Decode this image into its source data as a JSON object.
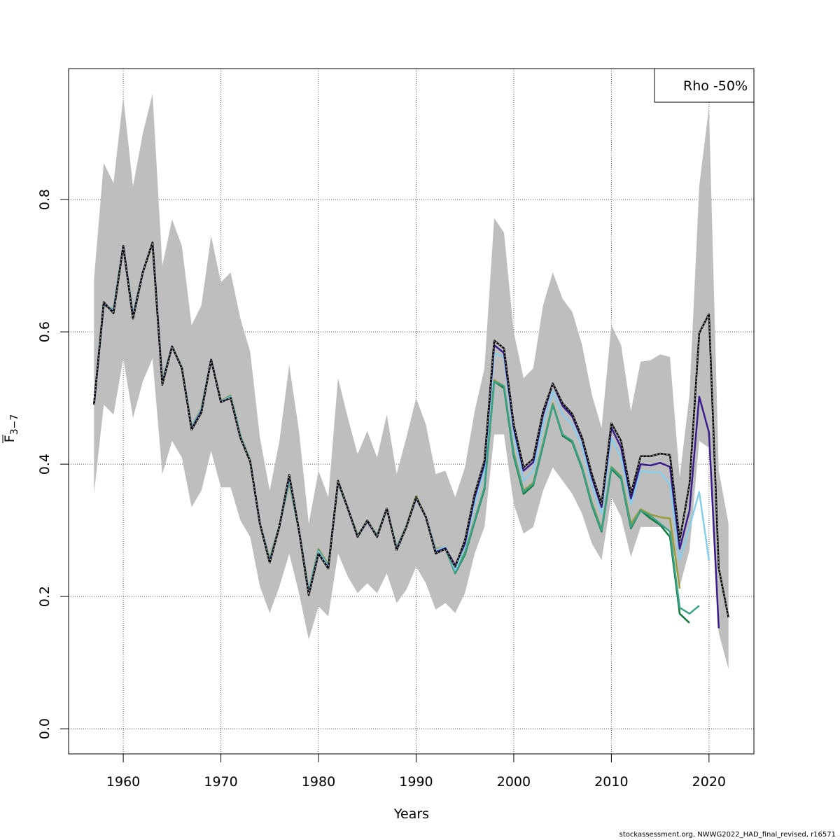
{
  "chart_data": {
    "type": "line",
    "title": "",
    "xlabel": "Years",
    "ylabel_main": "F",
    "ylabel_sub": "3−7",
    "xlim": [
      1954.4,
      2024.6
    ],
    "ylim": [
      -0.038,
      0.998
    ],
    "x_ticks": [
      1960,
      1970,
      1980,
      1990,
      2000,
      2010,
      2020
    ],
    "x_tick_labels": [
      "1960",
      "1970",
      "1980",
      "1990",
      "2000",
      "2010",
      "2020"
    ],
    "y_ticks": [
      0.0,
      0.2,
      0.4,
      0.6,
      0.8
    ],
    "y_tick_labels": [
      "0.0",
      "0.2",
      "0.4",
      "0.6",
      "0.8"
    ],
    "grid": true,
    "legend": {
      "position": "top-right",
      "label": "Rho -50%"
    },
    "band": {
      "color": "#bebebe",
      "x": [
        1957,
        1958,
        1959,
        1960,
        1961,
        1962,
        1963,
        1964,
        1965,
        1966,
        1967,
        1968,
        1969,
        1970,
        1971,
        1972,
        1973,
        1974,
        1975,
        1976,
        1977,
        1978,
        1979,
        1980,
        1981,
        1982,
        1983,
        1984,
        1985,
        1986,
        1987,
        1988,
        1989,
        1990,
        1991,
        1992,
        1993,
        1994,
        1995,
        1996,
        1997,
        1998,
        1999,
        2000,
        2001,
        2002,
        2003,
        2004,
        2005,
        2006,
        2007,
        2008,
        2009,
        2010,
        2011,
        2012,
        2013,
        2014,
        2015,
        2016,
        2017,
        2018,
        2019,
        2020,
        2021,
        2022
      ],
      "upper": [
        0.68,
        0.855,
        0.825,
        0.955,
        0.82,
        0.9,
        0.96,
        0.7,
        0.77,
        0.73,
        0.61,
        0.64,
        0.745,
        0.675,
        0.69,
        0.62,
        0.57,
        0.44,
        0.36,
        0.435,
        0.55,
        0.45,
        0.31,
        0.39,
        0.35,
        0.53,
        0.47,
        0.415,
        0.45,
        0.41,
        0.475,
        0.385,
        0.44,
        0.5,
        0.46,
        0.385,
        0.39,
        0.35,
        0.395,
        0.48,
        0.545,
        0.772,
        0.75,
        0.6,
        0.53,
        0.545,
        0.64,
        0.69,
        0.65,
        0.63,
        0.58,
        0.505,
        0.455,
        0.61,
        0.58,
        0.48,
        0.555,
        0.557,
        0.566,
        0.562,
        0.38,
        0.505,
        0.82,
        0.94,
        0.39,
        0.31
      ],
      "lower": [
        0.355,
        0.49,
        0.475,
        0.56,
        0.47,
        0.525,
        0.56,
        0.385,
        0.435,
        0.41,
        0.335,
        0.36,
        0.42,
        0.365,
        0.365,
        0.315,
        0.29,
        0.215,
        0.175,
        0.215,
        0.265,
        0.205,
        0.135,
        0.185,
        0.17,
        0.265,
        0.23,
        0.205,
        0.22,
        0.205,
        0.235,
        0.19,
        0.21,
        0.245,
        0.22,
        0.18,
        0.19,
        0.175,
        0.205,
        0.265,
        0.305,
        0.445,
        0.445,
        0.34,
        0.295,
        0.305,
        0.36,
        0.395,
        0.375,
        0.355,
        0.325,
        0.28,
        0.255,
        0.35,
        0.32,
        0.26,
        0.305,
        0.305,
        0.305,
        0.3,
        0.215,
        0.27,
        0.435,
        0.425,
        0.145,
        0.09
      ]
    },
    "series": [
      {
        "name": "peel-0",
        "color": "#000000",
        "dashed_overlay": true,
        "x": [
          1957,
          1958,
          1959,
          1960,
          1961,
          1962,
          1963,
          1964,
          1965,
          1966,
          1967,
          1968,
          1969,
          1970,
          1971,
          1972,
          1973,
          1974,
          1975,
          1976,
          1977,
          1978,
          1979,
          1980,
          1981,
          1982,
          1983,
          1984,
          1985,
          1986,
          1987,
          1988,
          1989,
          1990,
          1991,
          1992,
          1993,
          1994,
          1995,
          1996,
          1997,
          1998,
          1999,
          2000,
          2001,
          2002,
          2003,
          2004,
          2005,
          2006,
          2007,
          2008,
          2009,
          2010,
          2011,
          2012,
          2013,
          2014,
          2015,
          2016,
          2017,
          2018,
          2019,
          2020,
          2021,
          2022
        ],
        "values": [
          0.49,
          0.645,
          0.628,
          0.73,
          0.62,
          0.69,
          0.735,
          0.52,
          0.578,
          0.545,
          0.452,
          0.478,
          0.558,
          0.494,
          0.5,
          0.44,
          0.404,
          0.31,
          0.251,
          0.306,
          0.384,
          0.3,
          0.202,
          0.265,
          0.242,
          0.375,
          0.333,
          0.29,
          0.315,
          0.29,
          0.333,
          0.27,
          0.305,
          0.35,
          0.32,
          0.265,
          0.272,
          0.245,
          0.285,
          0.355,
          0.405,
          0.587,
          0.575,
          0.46,
          0.395,
          0.408,
          0.48,
          0.522,
          0.492,
          0.476,
          0.44,
          0.385,
          0.34,
          0.462,
          0.435,
          0.355,
          0.412,
          0.412,
          0.416,
          0.414,
          0.285,
          0.37,
          0.598,
          0.627,
          0.243,
          0.168
        ]
      },
      {
        "name": "peel-1",
        "color": "#3a1c8c",
        "x": [
          1957,
          1958,
          1959,
          1960,
          1961,
          1962,
          1963,
          1964,
          1965,
          1966,
          1967,
          1968,
          1969,
          1970,
          1971,
          1972,
          1973,
          1974,
          1975,
          1976,
          1977,
          1978,
          1979,
          1980,
          1981,
          1982,
          1983,
          1984,
          1985,
          1986,
          1987,
          1988,
          1989,
          1990,
          1991,
          1992,
          1993,
          1994,
          1995,
          1996,
          1997,
          1998,
          1999,
          2000,
          2001,
          2002,
          2003,
          2004,
          2005,
          2006,
          2007,
          2008,
          2009,
          2010,
          2011,
          2012,
          2013,
          2014,
          2015,
          2016,
          2017,
          2018,
          2019,
          2020,
          2021
        ],
        "values": [
          0.49,
          0.643,
          0.63,
          0.73,
          0.622,
          0.69,
          0.735,
          0.522,
          0.578,
          0.545,
          0.453,
          0.48,
          0.558,
          0.494,
          0.5,
          0.44,
          0.404,
          0.31,
          0.252,
          0.306,
          0.382,
          0.3,
          0.203,
          0.265,
          0.243,
          0.374,
          0.333,
          0.29,
          0.314,
          0.29,
          0.333,
          0.271,
          0.305,
          0.349,
          0.32,
          0.267,
          0.273,
          0.247,
          0.28,
          0.35,
          0.4,
          0.58,
          0.568,
          0.455,
          0.39,
          0.403,
          0.475,
          0.522,
          0.488,
          0.472,
          0.437,
          0.38,
          0.335,
          0.455,
          0.425,
          0.348,
          0.4,
          0.398,
          0.402,
          0.396,
          0.272,
          0.33,
          0.502,
          0.448,
          0.152
        ]
      },
      {
        "name": "peel-2",
        "color": "#87ceeb",
        "x": [
          1957,
          1958,
          1959,
          1960,
          1961,
          1962,
          1963,
          1964,
          1965,
          1966,
          1967,
          1968,
          1969,
          1970,
          1971,
          1972,
          1973,
          1974,
          1975,
          1976,
          1977,
          1978,
          1979,
          1980,
          1981,
          1982,
          1983,
          1984,
          1985,
          1986,
          1987,
          1988,
          1989,
          1990,
          1991,
          1992,
          1993,
          1994,
          1995,
          1996,
          1997,
          1998,
          1999,
          2000,
          2001,
          2002,
          2003,
          2004,
          2005,
          2006,
          2007,
          2008,
          2009,
          2010,
          2011,
          2012,
          2013,
          2014,
          2015,
          2016,
          2017,
          2018,
          2019,
          2020
        ],
        "values": [
          0.49,
          0.642,
          0.632,
          0.73,
          0.624,
          0.69,
          0.735,
          0.524,
          0.578,
          0.546,
          0.454,
          0.482,
          0.558,
          0.495,
          0.502,
          0.442,
          0.405,
          0.31,
          0.254,
          0.307,
          0.378,
          0.3,
          0.205,
          0.268,
          0.245,
          0.373,
          0.333,
          0.291,
          0.313,
          0.291,
          0.333,
          0.272,
          0.306,
          0.348,
          0.32,
          0.27,
          0.275,
          0.24,
          0.275,
          0.34,
          0.392,
          0.568,
          0.562,
          0.445,
          0.375,
          0.39,
          0.46,
          0.51,
          0.475,
          0.46,
          0.427,
          0.368,
          0.325,
          0.44,
          0.41,
          0.34,
          0.39,
          0.388,
          0.388,
          0.37,
          0.255,
          0.305,
          0.358,
          0.255
        ]
      },
      {
        "name": "peel-3",
        "color": "#3aa28a",
        "x": [
          1957,
          1958,
          1959,
          1960,
          1961,
          1962,
          1963,
          1964,
          1965,
          1966,
          1967,
          1968,
          1969,
          1970,
          1971,
          1972,
          1973,
          1974,
          1975,
          1976,
          1977,
          1978,
          1979,
          1980,
          1981,
          1982,
          1983,
          1984,
          1985,
          1986,
          1987,
          1988,
          1989,
          1990,
          1991,
          1992,
          1993,
          1994,
          1995,
          1996,
          1997,
          1998,
          1999,
          2000,
          2001,
          2002,
          2003,
          2004,
          2005,
          2006,
          2007,
          2008,
          2009,
          2010,
          2011,
          2012,
          2013,
          2014,
          2015,
          2016,
          2017,
          2018,
          2019
        ],
        "values": [
          0.49,
          0.641,
          0.633,
          0.73,
          0.625,
          0.69,
          0.735,
          0.525,
          0.578,
          0.546,
          0.455,
          0.483,
          0.558,
          0.495,
          0.503,
          0.443,
          0.405,
          0.31,
          0.255,
          0.307,
          0.375,
          0.3,
          0.207,
          0.27,
          0.246,
          0.372,
          0.333,
          0.292,
          0.313,
          0.292,
          0.333,
          0.273,
          0.306,
          0.35,
          0.32,
          0.27,
          0.273,
          0.236,
          0.265,
          0.315,
          0.365,
          0.525,
          0.518,
          0.415,
          0.358,
          0.37,
          0.43,
          0.49,
          0.445,
          0.435,
          0.395,
          0.34,
          0.3,
          0.395,
          0.38,
          0.305,
          0.33,
          0.322,
          0.31,
          0.298,
          0.183,
          0.174,
          0.186
        ]
      },
      {
        "name": "peel-4",
        "color": "#117a3a",
        "x": [
          1957,
          1958,
          1959,
          1960,
          1961,
          1962,
          1963,
          1964,
          1965,
          1966,
          1967,
          1968,
          1969,
          1970,
          1971,
          1972,
          1973,
          1974,
          1975,
          1976,
          1977,
          1978,
          1979,
          1980,
          1981,
          1982,
          1983,
          1984,
          1985,
          1986,
          1987,
          1988,
          1989,
          1990,
          1991,
          1992,
          1993,
          1994,
          1995,
          1996,
          1997,
          1998,
          1999,
          2000,
          2001,
          2002,
          2003,
          2004,
          2005,
          2006,
          2007,
          2008,
          2009,
          2010,
          2011,
          2012,
          2013,
          2014,
          2015,
          2016,
          2017,
          2018
        ],
        "values": [
          0.49,
          0.641,
          0.633,
          0.73,
          0.625,
          0.69,
          0.735,
          0.525,
          0.578,
          0.546,
          0.455,
          0.483,
          0.558,
          0.495,
          0.503,
          0.443,
          0.405,
          0.31,
          0.255,
          0.307,
          0.375,
          0.3,
          0.207,
          0.27,
          0.246,
          0.372,
          0.333,
          0.292,
          0.313,
          0.292,
          0.333,
          0.273,
          0.306,
          0.35,
          0.32,
          0.27,
          0.273,
          0.235,
          0.263,
          0.313,
          0.362,
          0.525,
          0.515,
          0.412,
          0.355,
          0.368,
          0.428,
          0.49,
          0.443,
          0.433,
          0.393,
          0.338,
          0.298,
          0.393,
          0.378,
          0.303,
          0.33,
          0.318,
          0.308,
          0.29,
          0.174,
          0.16
        ]
      },
      {
        "name": "peel-5",
        "color": "#9c9a3a",
        "x": [
          1957,
          1958,
          1959,
          1960,
          1961,
          1962,
          1963,
          1964,
          1965,
          1966,
          1967,
          1968,
          1969,
          1970,
          1971,
          1972,
          1973,
          1974,
          1975,
          1976,
          1977,
          1978,
          1979,
          1980,
          1981,
          1982,
          1983,
          1984,
          1985,
          1986,
          1987,
          1988,
          1989,
          1990,
          1991,
          1992,
          1993,
          1994,
          1995,
          1996,
          1997,
          1998,
          1999,
          2000,
          2001,
          2002,
          2003,
          2004,
          2005,
          2006,
          2007,
          2008,
          2009,
          2010,
          2011,
          2012,
          2013,
          2014,
          2015,
          2016,
          2017
        ],
        "values": [
          0.49,
          0.64,
          0.634,
          0.73,
          0.626,
          0.69,
          0.733,
          0.527,
          0.578,
          0.547,
          0.456,
          0.484,
          0.558,
          0.496,
          0.504,
          0.444,
          0.406,
          0.31,
          0.257,
          0.308,
          0.372,
          0.3,
          0.208,
          0.272,
          0.248,
          0.371,
          0.333,
          0.293,
          0.312,
          0.293,
          0.333,
          0.274,
          0.307,
          0.352,
          0.32,
          0.272,
          0.275,
          0.237,
          0.267,
          0.316,
          0.364,
          0.527,
          0.518,
          0.418,
          0.36,
          0.372,
          0.432,
          0.492,
          0.445,
          0.435,
          0.396,
          0.342,
          0.302,
          0.396,
          0.382,
          0.31,
          0.332,
          0.324,
          0.32,
          0.318,
          0.212
        ]
      }
    ]
  },
  "credit": "stockassessment.org, NWWG2022_HAD_final_revised, r16571"
}
